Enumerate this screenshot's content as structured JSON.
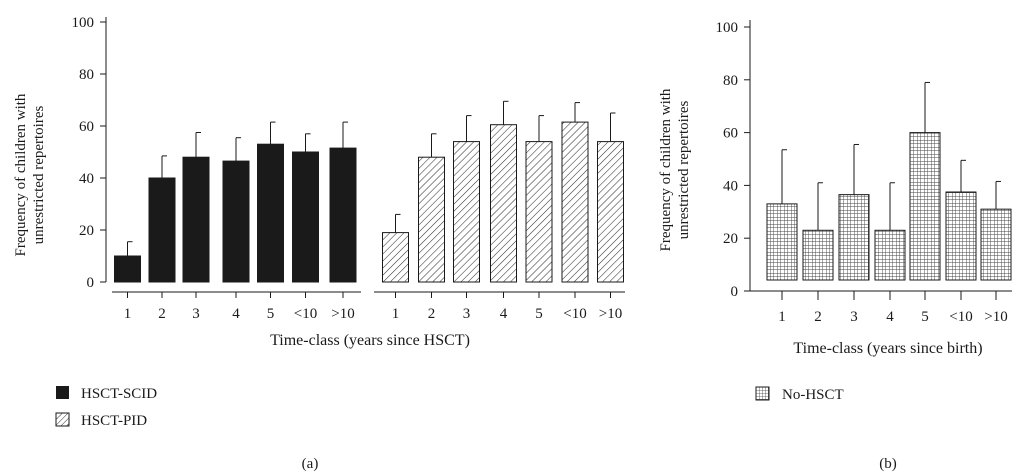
{
  "panel_a": {
    "label": "(a)",
    "chart_data": {
      "type": "bar",
      "categories": [
        "1",
        "2",
        "3",
        "4",
        "5",
        "<10",
        ">10"
      ],
      "series": [
        {
          "name": "HSCT-SCID",
          "values": [
            10,
            40,
            48,
            46.5,
            53,
            50,
            51.5
          ],
          "errors": [
            5.5,
            8.5,
            9.5,
            9,
            8.5,
            7,
            10
          ]
        },
        {
          "name": "HSCT-PID",
          "values": [
            19,
            48,
            54,
            60.5,
            54,
            61.5,
            54
          ],
          "errors": [
            7,
            9,
            10,
            9,
            10,
            7.5,
            11
          ]
        }
      ],
      "yticks": [
        0,
        20,
        40,
        60,
        80,
        100
      ],
      "ylim": [
        0,
        100
      ],
      "ylabel_line1": "Frequency of children with",
      "ylabel_line2": "unrestricted repertoires",
      "xlabel": "Time-class (years since HSCT)"
    }
  },
  "panel_b": {
    "label": "(b)",
    "chart_data": {
      "type": "bar",
      "categories": [
        "1",
        "2",
        "3",
        "4",
        "5",
        "<10",
        ">10"
      ],
      "series": [
        {
          "name": "No-HSCT",
          "values": [
            33,
            23,
            36.5,
            23,
            60,
            37.5,
            31
          ],
          "errors": [
            20.5,
            18,
            19,
            18,
            19,
            12,
            10.5
          ]
        }
      ],
      "yticks": [
        0,
        20,
        40,
        60,
        80,
        100
      ],
      "ylim": [
        0,
        100
      ],
      "ylabel_line1": "Frequency of children with",
      "ylabel_line2": "unrestricted repertoires",
      "xlabel": "Time-class (years since birth)"
    }
  },
  "colors": {
    "scid_fill": "#1a1a1a",
    "axis": "#1a1a1a",
    "pattern_stroke": "#333333"
  }
}
